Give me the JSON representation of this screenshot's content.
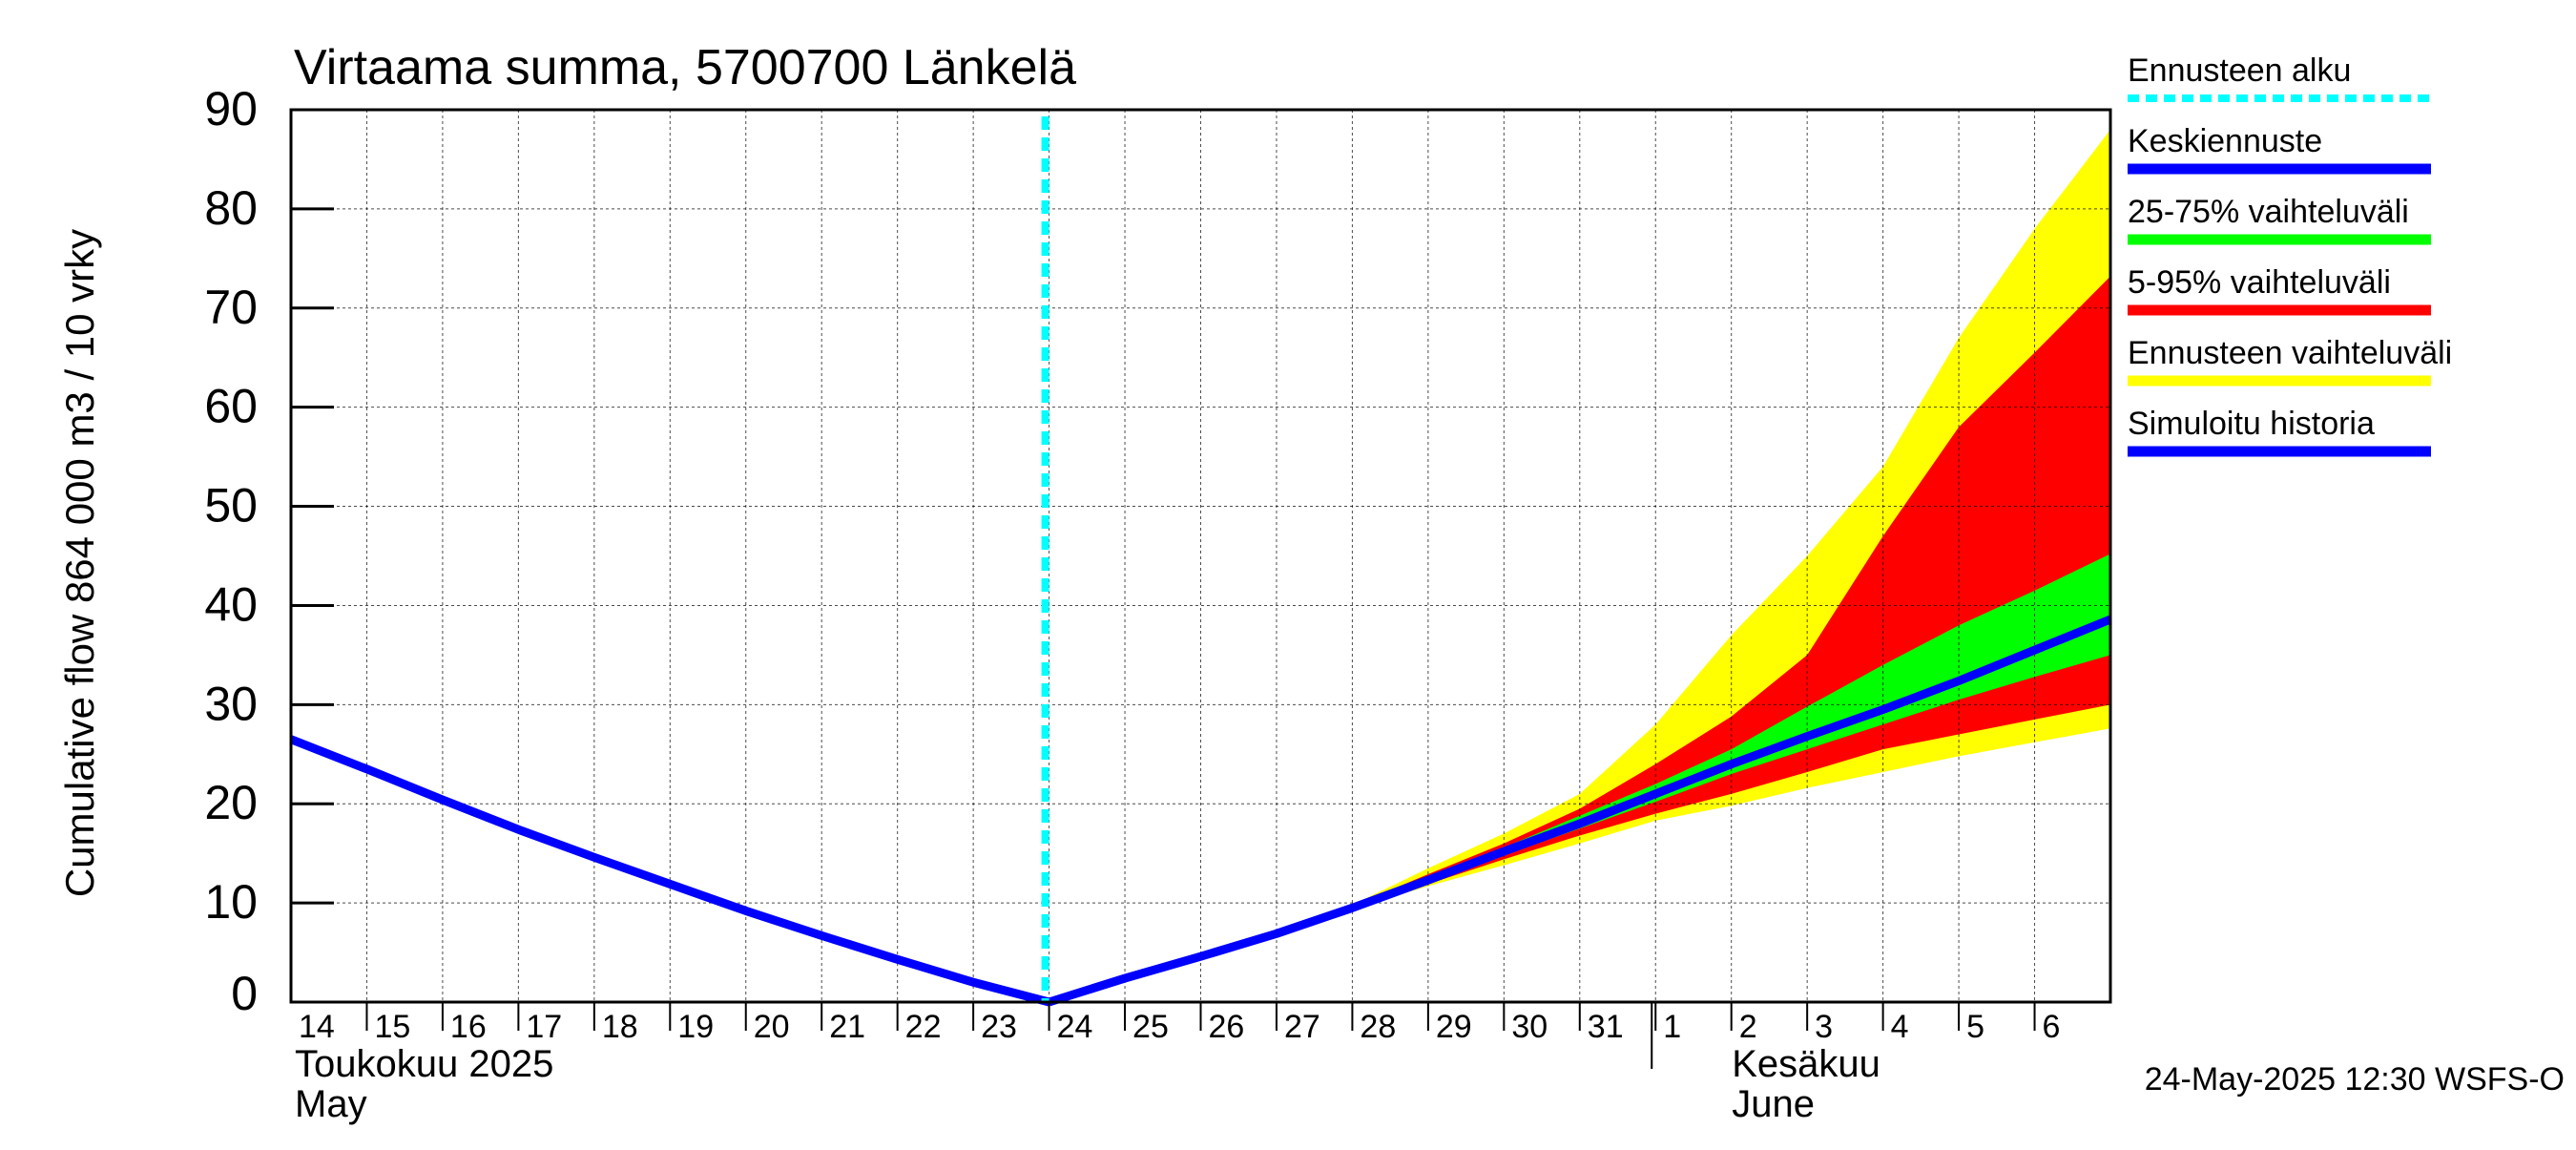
{
  "chart_data": {
    "type": "area",
    "title": "Virtaama summa, 5700700 Länkelä",
    "ylabel": "Cumulative flow     864 000 m3 / 10 vrky",
    "ylim": [
      0,
      90
    ],
    "yticks": [
      "0",
      "10",
      "20",
      "30",
      "40",
      "50",
      "60",
      "70",
      "80",
      "90"
    ],
    "grid": true,
    "x_start": "2025-05-14",
    "x_end": "2025-06-07",
    "xtick_labels": [
      "14",
      "15",
      "16",
      "17",
      "18",
      "19",
      "20",
      "21",
      "22",
      "23",
      "24",
      "25",
      "26",
      "27",
      "28",
      "29",
      "30",
      "31",
      "1",
      "2",
      "3",
      "4",
      "5",
      "6"
    ],
    "month_labels": [
      {
        "fi": "Toukokuu  2025",
        "en": "May"
      },
      {
        "fi": "Kesäkuu",
        "en": "June"
      }
    ],
    "forecast_start": "2025-05-24",
    "history": {
      "x": [
        "2025-05-14",
        "2025-05-15",
        "2025-05-16",
        "2025-05-17",
        "2025-05-18",
        "2025-05-19",
        "2025-05-20",
        "2025-05-21",
        "2025-05-22",
        "2025-05-23",
        "2025-05-24"
      ],
      "y": [
        26.5,
        23.5,
        20.4,
        17.4,
        14.6,
        11.9,
        9.2,
        6.7,
        4.3,
        2.0,
        0.0
      ]
    },
    "forecast": {
      "x": [
        "2025-05-24",
        "2025-05-25",
        "2025-05-26",
        "2025-05-27",
        "2025-05-28",
        "2025-05-29",
        "2025-05-30",
        "2025-05-31",
        "2025-06-01",
        "2025-06-02",
        "2025-06-03",
        "2025-06-04",
        "2025-06-05",
        "2025-06-06",
        "2025-06-07"
      ],
      "min": [
        0.0,
        2.4,
        4.6,
        6.9,
        9.4,
        11.7,
        13.8,
        16.0,
        18.3,
        19.8,
        21.6,
        23.2,
        24.8,
        26.2,
        27.6
      ],
      "p5": [
        0.0,
        2.4,
        4.6,
        6.9,
        9.4,
        11.9,
        14.4,
        16.8,
        19.0,
        21.0,
        23.2,
        25.5,
        27.0,
        28.5,
        30.0
      ],
      "p25": [
        0.0,
        2.4,
        4.6,
        6.9,
        9.4,
        12.1,
        14.8,
        17.5,
        20.2,
        23.0,
        25.5,
        28.0,
        30.5,
        32.8,
        35.0
      ],
      "mean": [
        0.0,
        2.4,
        4.6,
        6.9,
        9.5,
        12.3,
        15.2,
        18.0,
        21.0,
        24.0,
        26.8,
        29.5,
        32.4,
        35.5,
        38.6
      ],
      "p75": [
        0.0,
        2.4,
        4.6,
        6.9,
        9.6,
        12.6,
        15.6,
        18.8,
        22.0,
        25.5,
        29.8,
        34.0,
        38.0,
        41.5,
        45.2
      ],
      "p95": [
        0.0,
        2.4,
        4.6,
        6.9,
        9.7,
        12.9,
        16.0,
        19.5,
        24.0,
        28.8,
        35.0,
        47.0,
        58.0,
        65.5,
        73.2
      ],
      "max": [
        0.0,
        2.4,
        4.6,
        6.9,
        9.8,
        13.5,
        17.0,
        21.0,
        28.0,
        37.0,
        45.0,
        54.0,
        67.0,
        78.0,
        88.0
      ]
    },
    "colors": {
      "history": "#0000ff",
      "mean": "#0000ff",
      "p25_75": "#00ff00",
      "p5_95": "#ff0000",
      "range": "#ffff00",
      "forecast_start": "#00ffff"
    },
    "legend": [
      {
        "label": "Ennusteen alku",
        "color": "#00ffff",
        "style": "dotted"
      },
      {
        "label": "Keskiennuste",
        "color": "#0000ff",
        "style": "solid"
      },
      {
        "label": "25-75% vaihteluväli",
        "color": "#00ff00",
        "style": "solid"
      },
      {
        "label": "5-95% vaihteluväli",
        "color": "#ff0000",
        "style": "solid"
      },
      {
        "label": "Ennusteen vaihteluväli",
        "color": "#ffff00",
        "style": "solid"
      },
      {
        "label": "Simuloitu historia",
        "color": "#0000ff",
        "style": "solid"
      }
    ],
    "legend_position": "right",
    "footer": "24-May-2025 12:30 WSFS-O"
  }
}
